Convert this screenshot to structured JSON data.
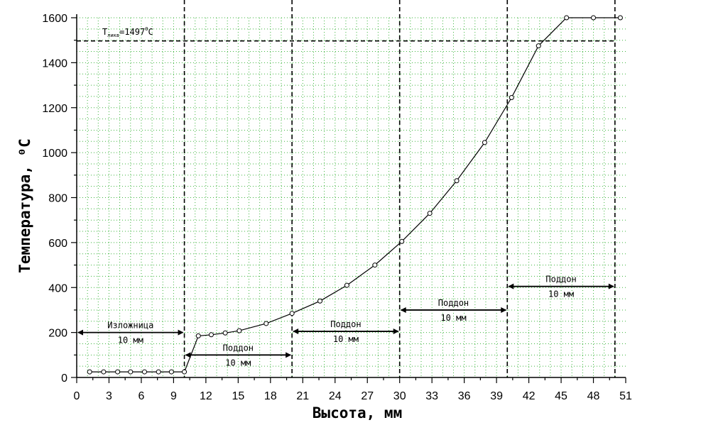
{
  "chart_data": {
    "type": "line",
    "title": "",
    "xlabel": "Высота, мм",
    "ylabel": "Температура, ⁰С",
    "xlim": [
      0,
      51
    ],
    "ylim": [
      0,
      1600
    ],
    "x_ticks": [
      0,
      3,
      6,
      9,
      12,
      15,
      18,
      21,
      24,
      27,
      30,
      33,
      36,
      39,
      42,
      45,
      48,
      51
    ],
    "y_ticks": [
      0,
      200,
      400,
      600,
      800,
      1000,
      1200,
      1400,
      1600
    ],
    "grid": true,
    "series": [
      {
        "name": "",
        "points": [
          [
            1.2,
            25
          ],
          [
            2.5,
            25
          ],
          [
            3.8,
            25
          ],
          [
            5.0,
            25
          ],
          [
            6.3,
            25
          ],
          [
            7.6,
            25
          ],
          [
            8.8,
            25
          ],
          [
            10.0,
            25
          ],
          [
            11.3,
            185
          ],
          [
            12.5,
            190
          ],
          [
            13.8,
            198
          ],
          [
            15.1,
            208
          ],
          [
            17.6,
            240
          ],
          [
            20.0,
            285
          ],
          [
            22.6,
            340
          ],
          [
            25.1,
            410
          ],
          [
            27.7,
            500
          ],
          [
            30.2,
            605
          ],
          [
            32.8,
            730
          ],
          [
            35.3,
            875
          ],
          [
            37.9,
            1045
          ],
          [
            40.4,
            1245
          ],
          [
            42.9,
            1475
          ],
          [
            45.5,
            1600
          ],
          [
            48.0,
            1600
          ],
          [
            50.5,
            1600
          ]
        ]
      }
    ],
    "reference_lines": {
      "vertical_x": [
        10,
        20,
        30,
        40,
        50
      ],
      "horizontal_y": 1497
    },
    "annotations": {
      "liquidus_T": "T",
      "liquidus_sub": "ликв",
      "liquidus_value": "=1497",
      "liquidus_deg": "0",
      "liquidus_unit": "C"
    },
    "segments": [
      {
        "label": "Изложница",
        "size": "10 мм",
        "x_from": 0,
        "x_to": 10,
        "y": 200
      },
      {
        "label": "Поддон",
        "size": "10 мм",
        "x_from": 10,
        "x_to": 20,
        "y": 100
      },
      {
        "label": "Поддон",
        "size": "10 мм",
        "x_from": 20,
        "x_to": 30,
        "y": 205
      },
      {
        "label": "Поддон",
        "size": "10 мм",
        "x_from": 30,
        "x_to": 40,
        "y": 300
      },
      {
        "label": "Поддон",
        "size": "10 мм",
        "x_from": 40,
        "x_to": 50,
        "y": 405
      }
    ]
  }
}
